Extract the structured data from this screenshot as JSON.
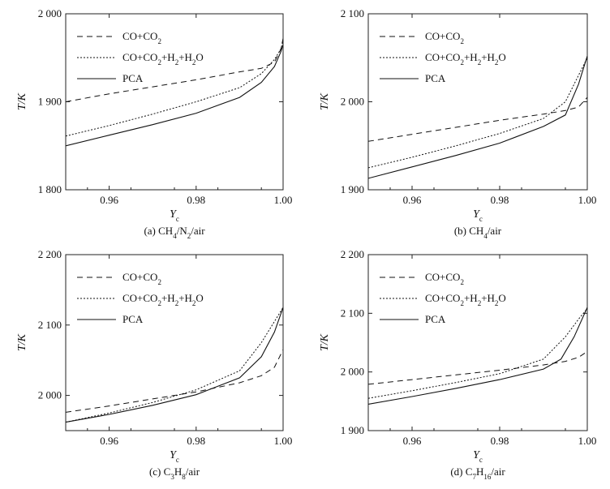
{
  "chart_data": [
    {
      "type": "line",
      "caption": "(a) CH4/N2/air",
      "caption_parts": [
        [
          "(a) CH",
          ""
        ],
        [
          "4",
          "sub"
        ],
        [
          "/N",
          ""
        ],
        [
          "2",
          "sub"
        ],
        [
          "/air",
          ""
        ]
      ],
      "xlabel": "Y",
      "xlabel_sub": "c",
      "ylabel": "T/K",
      "xlim": [
        0.95,
        1.0
      ],
      "ylim": [
        1800,
        2000
      ],
      "xticks": [
        {
          "v": 0.96,
          "label": "0.96"
        },
        {
          "v": 0.98,
          "label": "0.98"
        },
        {
          "v": 1.0,
          "label": "1.00"
        }
      ],
      "yticks": [
        {
          "v": 1800,
          "label": "1 800"
        },
        {
          "v": 1900,
          "label": "1 900"
        },
        {
          "v": 2000,
          "label": "2 000"
        }
      ],
      "legend_placement": "top-left",
      "series": [
        {
          "name": "CO+CO2",
          "name_parts": [
            [
              "CO+CO",
              ""
            ],
            [
              "2",
              "sub"
            ]
          ],
          "style": "dashed",
          "points": [
            [
              0.95,
              1900
            ],
            [
              0.96,
              1909
            ],
            [
              0.97,
              1917
            ],
            [
              0.98,
              1925
            ],
            [
              0.99,
              1934
            ],
            [
              0.995,
              1938
            ],
            [
              0.998,
              1945
            ],
            [
              0.9995,
              1960
            ],
            [
              1.0,
              1972
            ]
          ]
        },
        {
          "name": "CO+CO2+H2+H2O",
          "name_parts": [
            [
              "CO+CO",
              ""
            ],
            [
              "2",
              "sub"
            ],
            [
              "+H",
              ""
            ],
            [
              "2",
              "sub"
            ],
            [
              "+H",
              ""
            ],
            [
              "2",
              "sub"
            ],
            [
              "O",
              ""
            ]
          ],
          "style": "dotted",
          "points": [
            [
              0.95,
              1861
            ],
            [
              0.96,
              1873
            ],
            [
              0.97,
              1886
            ],
            [
              0.98,
              1900
            ],
            [
              0.99,
              1916
            ],
            [
              0.995,
              1932
            ],
            [
              0.998,
              1948
            ],
            [
              0.9995,
              1960
            ],
            [
              1.0,
              1970
            ]
          ]
        },
        {
          "name": "PCA",
          "name_parts": [
            [
              "PCA",
              ""
            ]
          ],
          "style": "solid",
          "points": [
            [
              0.95,
              1850
            ],
            [
              0.96,
              1862
            ],
            [
              0.97,
              1874
            ],
            [
              0.98,
              1887
            ],
            [
              0.99,
              1905
            ],
            [
              0.995,
              1922
            ],
            [
              0.998,
              1940
            ],
            [
              0.9995,
              1957
            ],
            [
              1.0,
              1965
            ]
          ]
        }
      ]
    },
    {
      "type": "line",
      "caption": "(b) CH4/air",
      "caption_parts": [
        [
          "(b) CH",
          ""
        ],
        [
          "4",
          "sub"
        ],
        [
          "/air",
          ""
        ]
      ],
      "xlabel": "Y",
      "xlabel_sub": "c",
      "ylabel": "T/K",
      "xlim": [
        0.95,
        1.0
      ],
      "ylim": [
        1900,
        2100
      ],
      "xticks": [
        {
          "v": 0.96,
          "label": "0.96"
        },
        {
          "v": 0.98,
          "label": "0.98"
        },
        {
          "v": 1.0,
          "label": "1.00"
        }
      ],
      "yticks": [
        {
          "v": 1900,
          "label": "1 900"
        },
        {
          "v": 2000,
          "label": "2 000"
        },
        {
          "v": 2100,
          "label": "2 100"
        }
      ],
      "legend_placement": "top-left",
      "series": [
        {
          "name": "CO+CO2",
          "name_parts": [
            [
              "CO+CO",
              ""
            ],
            [
              "2",
              "sub"
            ]
          ],
          "style": "dashed",
          "points": [
            [
              0.95,
              1955
            ],
            [
              0.96,
              1963
            ],
            [
              0.97,
              1971
            ],
            [
              0.98,
              1979
            ],
            [
              0.99,
              1986
            ],
            [
              0.995,
              1990
            ],
            [
              0.998,
              1994
            ],
            [
              1.0,
              2005
            ]
          ]
        },
        {
          "name": "CO+CO2+H2+H2O",
          "name_parts": [
            [
              "CO+CO",
              ""
            ],
            [
              "2",
              "sub"
            ],
            [
              "+H",
              ""
            ],
            [
              "2",
              "sub"
            ],
            [
              "+H",
              ""
            ],
            [
              "2",
              "sub"
            ],
            [
              "O",
              ""
            ]
          ],
          "style": "dotted",
          "points": [
            [
              0.95,
              1925
            ],
            [
              0.96,
              1937
            ],
            [
              0.97,
              1950
            ],
            [
              0.98,
              1964
            ],
            [
              0.99,
              1981
            ],
            [
              0.995,
              2000
            ],
            [
              0.998,
              2030
            ],
            [
              1.0,
              2050
            ]
          ]
        },
        {
          "name": "PCA",
          "name_parts": [
            [
              "PCA",
              ""
            ]
          ],
          "style": "solid",
          "points": [
            [
              0.95,
              1913
            ],
            [
              0.96,
              1926
            ],
            [
              0.97,
              1939
            ],
            [
              0.98,
              1953
            ],
            [
              0.99,
              1972
            ],
            [
              0.995,
              1985
            ],
            [
              0.998,
              2020
            ],
            [
              1.0,
              2052
            ]
          ]
        }
      ]
    },
    {
      "type": "line",
      "caption": "(c) C3H8/air",
      "caption_parts": [
        [
          "(c) C",
          ""
        ],
        [
          "3",
          "sub"
        ],
        [
          "H",
          ""
        ],
        [
          "8",
          "sub"
        ],
        [
          "/air",
          ""
        ]
      ],
      "xlabel": "Y",
      "xlabel_sub": "c",
      "ylabel": "T/K",
      "xlim": [
        0.95,
        1.0
      ],
      "ylim": [
        1950,
        2200
      ],
      "xticks": [
        {
          "v": 0.96,
          "label": "0.96"
        },
        {
          "v": 0.98,
          "label": "0.98"
        },
        {
          "v": 1.0,
          "label": "1.00"
        }
      ],
      "yticks": [
        {
          "v": 2000,
          "label": "2 000"
        },
        {
          "v": 2100,
          "label": "2 100"
        },
        {
          "v": 2200,
          "label": "2 200"
        }
      ],
      "legend_placement": "top-left",
      "series": [
        {
          "name": "CO+CO2",
          "name_parts": [
            [
              "CO+CO",
              ""
            ],
            [
              "2",
              "sub"
            ]
          ],
          "style": "dashed",
          "points": [
            [
              0.95,
              1976
            ],
            [
              0.96,
              1985
            ],
            [
              0.97,
              1995
            ],
            [
              0.98,
              2005
            ],
            [
              0.99,
              2018
            ],
            [
              0.995,
              2028
            ],
            [
              0.998,
              2040
            ],
            [
              1.0,
              2065
            ]
          ]
        },
        {
          "name": "CO+CO2+H2+H2O",
          "name_parts": [
            [
              "CO+CO",
              ""
            ],
            [
              "2",
              "sub"
            ],
            [
              "+H",
              ""
            ],
            [
              "2",
              "sub"
            ],
            [
              "+H",
              ""
            ],
            [
              "2",
              "sub"
            ],
            [
              "O",
              ""
            ]
          ],
          "style": "dotted",
          "points": [
            [
              0.95,
              1962
            ],
            [
              0.96,
              1975
            ],
            [
              0.97,
              1990
            ],
            [
              0.98,
              2008
            ],
            [
              0.99,
              2035
            ],
            [
              0.995,
              2075
            ],
            [
              0.998,
              2105
            ],
            [
              1.0,
              2125
            ]
          ]
        },
        {
          "name": "PCA",
          "name_parts": [
            [
              "PCA",
              ""
            ]
          ],
          "style": "solid",
          "points": [
            [
              0.95,
              1962
            ],
            [
              0.96,
              1973
            ],
            [
              0.97,
              1986
            ],
            [
              0.98,
              2001
            ],
            [
              0.99,
              2025
            ],
            [
              0.995,
              2055
            ],
            [
              0.998,
              2090
            ],
            [
              1.0,
              2125
            ]
          ]
        }
      ]
    },
    {
      "type": "line",
      "caption": "(d) C7H16/air",
      "caption_parts": [
        [
          "(d) C",
          ""
        ],
        [
          "7",
          "sub"
        ],
        [
          "H",
          ""
        ],
        [
          "16",
          "sub"
        ],
        [
          "/air",
          ""
        ]
      ],
      "xlabel": "Y",
      "xlabel_sub": "c",
      "ylabel": "T/K",
      "xlim": [
        0.95,
        1.0
      ],
      "ylim": [
        1900,
        2200
      ],
      "xticks": [
        {
          "v": 0.96,
          "label": "0.96"
        },
        {
          "v": 0.98,
          "label": "0.98"
        },
        {
          "v": 1.0,
          "label": "1.00"
        }
      ],
      "yticks": [
        {
          "v": 1900,
          "label": "1 900"
        },
        {
          "v": 2000,
          "label": "2 000"
        },
        {
          "v": 2100,
          "label": "2 100"
        },
        {
          "v": 2200,
          "label": "2 200"
        }
      ],
      "legend_placement": "top-left",
      "series": [
        {
          "name": "CO+CO2",
          "name_parts": [
            [
              "CO+CO",
              ""
            ],
            [
              "2",
              "sub"
            ]
          ],
          "style": "dashed",
          "points": [
            [
              0.95,
              1979
            ],
            [
              0.96,
              1987
            ],
            [
              0.97,
              1995
            ],
            [
              0.98,
              2003
            ],
            [
              0.99,
              2012
            ],
            [
              0.995,
              2018
            ],
            [
              0.998,
              2025
            ],
            [
              1.0,
              2035
            ]
          ]
        },
        {
          "name": "CO+CO2+H2+H2O",
          "name_parts": [
            [
              "CO+CO",
              ""
            ],
            [
              "2",
              "sub"
            ],
            [
              "+H",
              ""
            ],
            [
              "2",
              "sub"
            ],
            [
              "+H",
              ""
            ],
            [
              "2",
              "sub"
            ],
            [
              "O",
              ""
            ]
          ],
          "style": "dotted",
          "points": [
            [
              0.95,
              1955
            ],
            [
              0.96,
              1968
            ],
            [
              0.97,
              1982
            ],
            [
              0.98,
              1997
            ],
            [
              0.99,
              2022
            ],
            [
              0.995,
              2060
            ],
            [
              0.998,
              2090
            ],
            [
              1.0,
              2108
            ]
          ]
        },
        {
          "name": "PCA",
          "name_parts": [
            [
              "PCA",
              ""
            ]
          ],
          "style": "solid",
          "points": [
            [
              0.95,
              1945
            ],
            [
              0.96,
              1958
            ],
            [
              0.97,
              1972
            ],
            [
              0.98,
              1987
            ],
            [
              0.99,
              2005
            ],
            [
              0.994,
              2022
            ],
            [
              0.997,
              2060
            ],
            [
              1.0,
              2110
            ]
          ]
        }
      ]
    }
  ]
}
